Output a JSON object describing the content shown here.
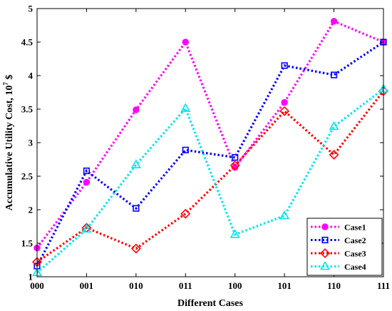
{
  "chart_data": {
    "type": "line",
    "categories": [
      "000",
      "001",
      "010",
      "011",
      "100",
      "101",
      "110",
      "111"
    ],
    "xlabel": "Different Cases",
    "ylabel_main": "Accumulative Utility Cost, 10",
    "ylabel_sup": "7",
    "ylabel_unit": " $",
    "ylim": [
      1,
      5
    ],
    "yticks": [
      1,
      1.5,
      2,
      2.5,
      3,
      3.5,
      4,
      4.5,
      5
    ],
    "ytick_labels": [
      "1",
      "1.5",
      "2",
      "2.5",
      "3",
      "3.5",
      "4",
      "4.5",
      "5"
    ],
    "grid": false,
    "legend_position": "bottom-right",
    "series": [
      {
        "name": "Case1",
        "color": "#ff00ff",
        "marker": "circle",
        "values": [
          1.43,
          2.41,
          3.49,
          4.5,
          2.63,
          3.6,
          4.81,
          4.5
        ]
      },
      {
        "name": "Case2",
        "color": "#0000ff",
        "marker": "square",
        "values": [
          1.16,
          2.58,
          2.02,
          2.89,
          2.78,
          4.15,
          4.01,
          4.5
        ]
      },
      {
        "name": "Case3",
        "color": "#ff0000",
        "marker": "diamond",
        "values": [
          1.22,
          1.73,
          1.42,
          1.94,
          2.66,
          3.47,
          2.82,
          3.77
        ]
      },
      {
        "name": "Case4",
        "color": "#00e5ee",
        "marker": "triangle",
        "values": [
          1.06,
          1.71,
          2.67,
          3.51,
          1.63,
          1.91,
          3.24,
          3.8
        ]
      }
    ]
  }
}
